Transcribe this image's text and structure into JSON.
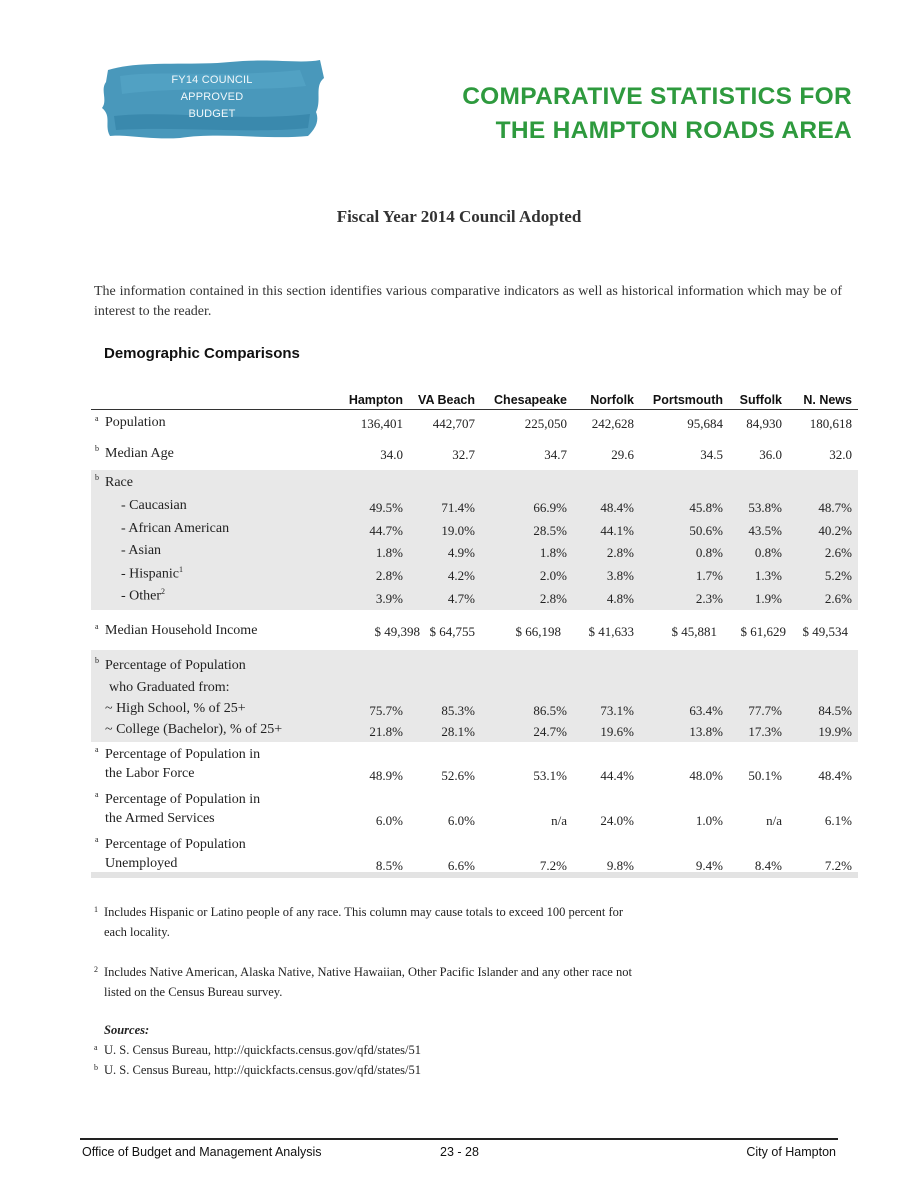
{
  "badge": {
    "lines": [
      "FY14 COUNCIL",
      "APPROVED",
      "BUDGET"
    ],
    "color": "#3a8fb5"
  },
  "title": {
    "line1": "COMPARATIVE STATISTICS FOR",
    "line2": "THE HAMPTON ROADS AREA",
    "color": "#2e9a3e"
  },
  "subtitle": "Fiscal Year 2014 Council Adopted",
  "intro": "The information contained in this section identifies various comparative indicators as well as historical information which may be of interest to the reader.",
  "section_heading": "Demographic Comparisons",
  "columns": [
    "Hampton",
    "VA Beach",
    "Chesapeake",
    "Norfolk",
    "Portsmouth",
    "Suffolk",
    "N. News"
  ],
  "rows": {
    "population": {
      "sup": "a",
      "label": "Population",
      "values": [
        "136,401",
        "442,707",
        "225,050",
        "242,628",
        "95,684",
        "84,930",
        "180,618"
      ]
    },
    "median_age": {
      "sup": "b",
      "label": "Median Age",
      "values": [
        "34.0",
        "32.7",
        "34.7",
        "29.6",
        "34.5",
        "36.0",
        "32.0"
      ]
    },
    "race": {
      "sup": "b",
      "label": "Race",
      "caucasian": {
        "label": "- Caucasian",
        "values": [
          "49.5%",
          "71.4%",
          "66.9%",
          "48.4%",
          "45.8%",
          "53.8%",
          "48.7%"
        ]
      },
      "african_american": {
        "label": "- African American",
        "values": [
          "44.7%",
          "19.0%",
          "28.5%",
          "44.1%",
          "50.6%",
          "43.5%",
          "40.2%"
        ]
      },
      "asian": {
        "label": "- Asian",
        "values": [
          "1.8%",
          "4.9%",
          "1.8%",
          "2.8%",
          "0.8%",
          "0.8%",
          "2.6%"
        ]
      },
      "hispanic": {
        "label": "- Hispanic",
        "note": "1",
        "values": [
          "2.8%",
          "4.2%",
          "2.0%",
          "3.8%",
          "1.7%",
          "1.3%",
          "5.2%"
        ]
      },
      "other": {
        "label": "- Other",
        "note": "2",
        "values": [
          "3.9%",
          "4.7%",
          "2.8%",
          "4.8%",
          "2.3%",
          "1.9%",
          "2.6%"
        ]
      }
    },
    "income": {
      "sup": "a",
      "label": "Median Household Income",
      "values": [
        "$ 49,398",
        "$ 64,755",
        "$ 66,198",
        "$ 41,633",
        "$ 45,881",
        "$ 61,629",
        "$ 49,534"
      ]
    },
    "education": {
      "sup": "b",
      "label1": "Percentage of Population",
      "label2": "who Graduated from:",
      "high_school": {
        "label": "~ High School, % of 25+",
        "values": [
          "75.7%",
          "85.3%",
          "86.5%",
          "73.1%",
          "63.4%",
          "77.7%",
          "84.5%"
        ]
      },
      "college": {
        "label": "~ College (Bachelor), % of 25+",
        "values": [
          "21.8%",
          "28.1%",
          "24.7%",
          "19.6%",
          "13.8%",
          "17.3%",
          "19.9%"
        ]
      }
    },
    "labor": {
      "sup": "a",
      "label1": "Percentage of Population in",
      "label2": "the Labor Force",
      "values": [
        "48.9%",
        "52.6%",
        "53.1%",
        "44.4%",
        "48.0%",
        "50.1%",
        "48.4%"
      ]
    },
    "armed": {
      "sup": "a",
      "label1": "Percentage of Population in",
      "label2": "the Armed Services",
      "values": [
        "6.0%",
        "6.0%",
        "n/a",
        "24.0%",
        "1.0%",
        "n/a",
        "6.1%"
      ]
    },
    "unemployed": {
      "sup": "a",
      "label1": "Percentage of Population",
      "label2": "Unemployed",
      "values": [
        "8.5%",
        "6.6%",
        "7.2%",
        "9.8%",
        "9.4%",
        "8.4%",
        "7.2%"
      ]
    }
  },
  "footnotes": {
    "fn1": {
      "sup": "1",
      "line1": "Includes Hispanic or Latino people of any race.  This column may cause totals to exceed 100 percent for",
      "line2": "each locality."
    },
    "fn2": {
      "sup": "2",
      "line1": "Includes Native American, Alaska Native, Native Hawaiian, Other Pacific Islander and any other race not",
      "line2": "listed on the Census Bureau survey."
    },
    "sources_title": "Sources:",
    "src_a": {
      "sup": "a",
      "text": "U. S. Census Bureau, http://quickfacts.census.gov/qfd/states/51"
    },
    "src_b": {
      "sup": "b",
      "text": "U. S. Census Bureau, http://quickfacts.census.gov/qfd/states/51"
    }
  },
  "footer": {
    "left": "Office of Budget and Management Analysis",
    "center": "23 - 28",
    "right": "City of Hampton"
  }
}
